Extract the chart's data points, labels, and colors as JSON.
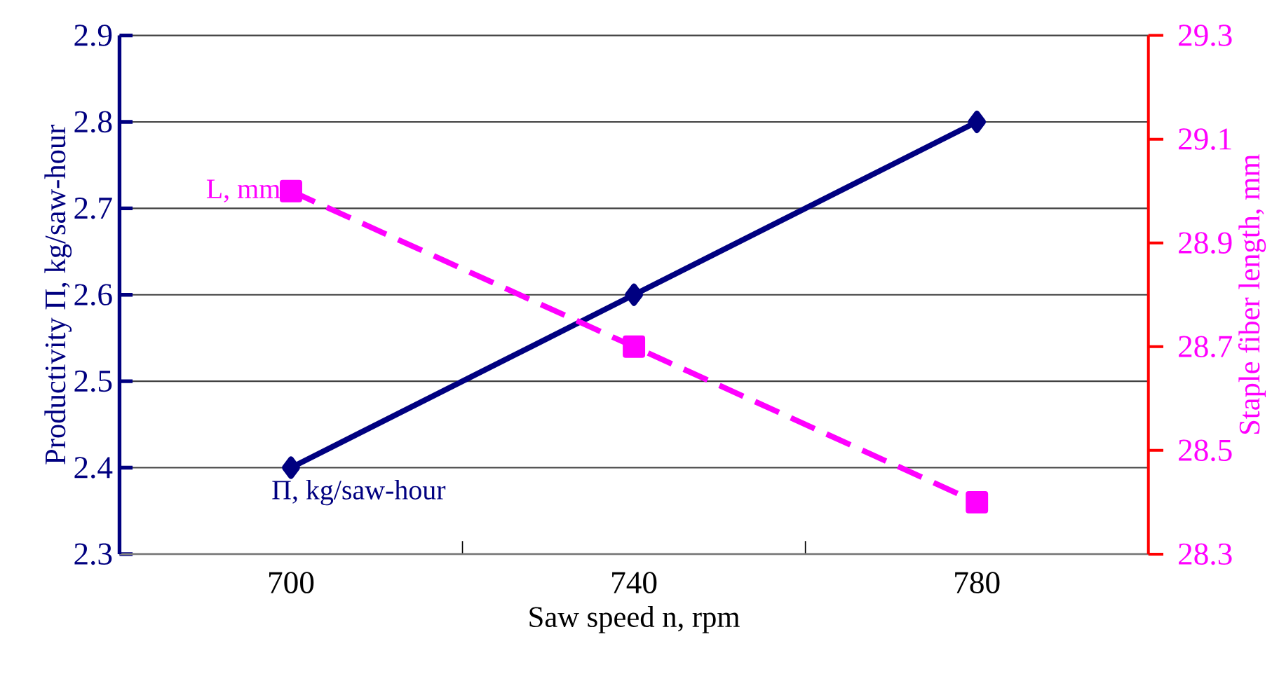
{
  "chart_data": {
    "type": "line",
    "xlabel": "Saw speed n, rpm",
    "ylabel": "Productivity П, kg/saw-hour",
    "y2label": "Staple fiber length, mm",
    "categories": [
      "700",
      "740",
      "780"
    ],
    "ylim": [
      2.3,
      2.9
    ],
    "yticks": [
      2.3,
      2.4,
      2.5,
      2.6,
      2.7,
      2.8,
      2.9
    ],
    "y2lim": [
      28.3,
      29.3
    ],
    "y2ticks": [
      28.3,
      28.5,
      28.7,
      28.9,
      29.1,
      29.3
    ],
    "grid": "y",
    "legend": false,
    "series": [
      {
        "name": "П, kg/saw-hour",
        "color": "#000080",
        "values": [
          2.4,
          2.6,
          2.8
        ],
        "marker": "diamond",
        "line_style": "solid"
      },
      {
        "name": "L, mm",
        "color": "#ff00ff",
        "values": [
          29.0,
          28.7,
          28.4
        ],
        "axis": "y2",
        "marker": "square",
        "line_style": "dashed"
      }
    ]
  }
}
